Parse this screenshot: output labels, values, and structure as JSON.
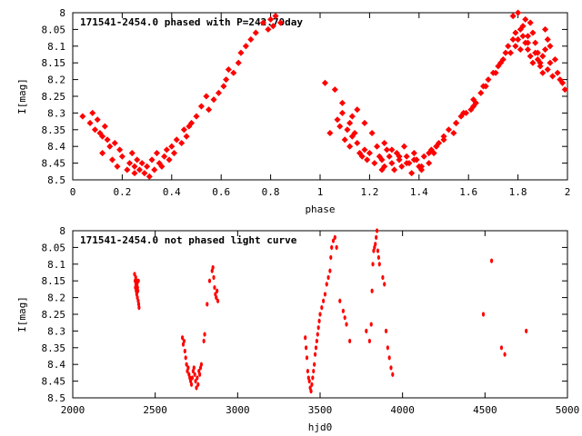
{
  "chart_data": [
    {
      "type": "scatter",
      "title": "171541-2454.0 phased with P=242.70day",
      "xlabel": "phase",
      "ylabel": "I[mag]",
      "xlim": [
        0,
        2
      ],
      "ylim": [
        8.5,
        8
      ],
      "y_inverted": true,
      "x_ticks": [
        "0",
        "0.2",
        "0.4",
        "0.6",
        "0.8",
        "1",
        "1.2",
        "1.4",
        "1.6",
        "1.8",
        "2"
      ],
      "y_ticks": [
        "8",
        "8.05",
        "8.1",
        "8.15",
        "8.2",
        "8.25",
        "8.3",
        "8.35",
        "8.4",
        "8.45",
        "8.5"
      ],
      "marker_color": "#ff0000",
      "series": [
        {
          "x": [
            0.04,
            0.07,
            0.08,
            0.09,
            0.1,
            0.11,
            0.12,
            0.12,
            0.13,
            0.14,
            0.15,
            0.16,
            0.17,
            0.18,
            0.19,
            0.2,
            0.22,
            0.23,
            0.24,
            0.25,
            0.25,
            0.26,
            0.27,
            0.28,
            0.29,
            0.3,
            0.31,
            0.32,
            0.33,
            0.34,
            0.35,
            0.36,
            0.37,
            0.38,
            0.39,
            0.4,
            0.41,
            0.42,
            0.44,
            0.45,
            0.46,
            0.47,
            0.48,
            0.5,
            0.52,
            0.54,
            0.55,
            0.57,
            0.59,
            0.61,
            0.62,
            0.63,
            0.65,
            0.67,
            0.68,
            0.7,
            0.72,
            0.74,
            0.77,
            0.79,
            0.8,
            0.81,
            0.82,
            0.84,
            1.04,
            1.07,
            1.08,
            1.09,
            1.1,
            1.11,
            1.12,
            1.12,
            1.13,
            1.14,
            1.15,
            1.16,
            1.17,
            1.18,
            1.19,
            1.2,
            1.22,
            1.23,
            1.24,
            1.25,
            1.25,
            1.26,
            1.27,
            1.28,
            1.29,
            1.3,
            1.31,
            1.32,
            1.33,
            1.34,
            1.35,
            1.36,
            1.37,
            1.38,
            1.39,
            1.4,
            1.41,
            1.42,
            1.44,
            1.45,
            1.46,
            1.47,
            1.48,
            1.5,
            1.52,
            1.54,
            1.55,
            1.57,
            1.59,
            1.61,
            1.62,
            1.63,
            1.65,
            1.67,
            1.68,
            1.7,
            1.72,
            1.74,
            1.77,
            1.79,
            1.8,
            1.81,
            1.82,
            1.84,
            1.02,
            1.06,
            1.09,
            1.13,
            1.15,
            1.18,
            1.21,
            1.26,
            1.29,
            1.32,
            1.35,
            1.38,
            1.41,
            1.44,
            1.47,
            1.5,
            1.55,
            1.58,
            1.62,
            1.66,
            1.71,
            1.73,
            1.75,
            1.76,
            1.78,
            1.79,
            1.81,
            1.83,
            1.84,
            1.85,
            1.86,
            1.87,
            1.88,
            1.89,
            1.9,
            1.91,
            1.92,
            1.93,
            1.94,
            1.95,
            1.96,
            1.97,
            1.98,
            1.99,
            1.85,
            1.86,
            1.87,
            1.88,
            1.89,
            1.9,
            1.91,
            1.92,
            1.93,
            1.83,
            1.84,
            1.82,
            1.8,
            1.78
          ],
          "y": [
            8.31,
            8.33,
            8.3,
            8.35,
            8.32,
            8.36,
            8.37,
            8.42,
            8.34,
            8.38,
            8.4,
            8.44,
            8.39,
            8.46,
            8.41,
            8.43,
            8.47,
            8.45,
            8.42,
            8.46,
            8.48,
            8.44,
            8.47,
            8.45,
            8.48,
            8.46,
            8.49,
            8.44,
            8.47,
            8.42,
            8.45,
            8.46,
            8.43,
            8.41,
            8.44,
            8.4,
            8.42,
            8.38,
            8.39,
            8.35,
            8.37,
            8.34,
            8.33,
            8.31,
            8.28,
            8.25,
            8.29,
            8.26,
            8.24,
            8.22,
            8.2,
            8.17,
            8.18,
            8.15,
            8.12,
            8.1,
            8.08,
            8.06,
            8.03,
            8.05,
            8.02,
            8.04,
            8.01,
            8.03,
            8.36,
            8.32,
            8.34,
            8.3,
            8.38,
            8.35,
            8.33,
            8.4,
            8.37,
            8.36,
            8.39,
            8.42,
            8.43,
            8.41,
            8.44,
            8.42,
            8.45,
            8.4,
            8.43,
            8.47,
            8.44,
            8.46,
            8.41,
            8.43,
            8.45,
            8.47,
            8.42,
            8.44,
            8.46,
            8.4,
            8.43,
            8.45,
            8.48,
            8.42,
            8.44,
            8.46,
            8.47,
            8.43,
            8.45,
            8.41,
            8.42,
            8.4,
            8.39,
            8.37,
            8.35,
            8.36,
            8.33,
            8.31,
            8.3,
            8.29,
            8.28,
            8.27,
            8.24,
            8.22,
            8.2,
            8.18,
            8.16,
            8.14,
            8.12,
            8.1,
            8.08,
            8.11,
            8.07,
            8.09,
            8.21,
            8.23,
            8.27,
            8.31,
            8.29,
            8.33,
            8.36,
            8.39,
            8.41,
            8.43,
            8.45,
            8.44,
            8.46,
            8.42,
            8.4,
            8.38,
            8.33,
            8.3,
            8.26,
            8.22,
            8.18,
            8.15,
            8.12,
            8.1,
            8.08,
            8.06,
            8.05,
            8.09,
            8.11,
            8.13,
            8.15,
            8.12,
            8.14,
            8.16,
            8.13,
            8.11,
            8.17,
            8.15,
            8.19,
            8.14,
            8.18,
            8.2,
            8.21,
            8.23,
            8.03,
            8.06,
            8.09,
            8.12,
            8.15,
            8.18,
            8.05,
            8.08,
            8.1,
            8.02,
            8.07,
            8.04,
            8.0,
            8.01
          ]
        }
      ]
    },
    {
      "type": "scatter",
      "title": "171541-2454.0 not phased light curve",
      "xlabel": "hjd0",
      "ylabel": "I[mag]",
      "xlim": [
        2000,
        5000
      ],
      "ylim": [
        8.5,
        8
      ],
      "y_inverted": true,
      "x_ticks": [
        "2000",
        "2500",
        "3000",
        "3500",
        "4000",
        "4500",
        "5000"
      ],
      "y_ticks": [
        "8",
        "8.05",
        "8.1",
        "8.15",
        "8.2",
        "8.25",
        "8.3",
        "8.35",
        "8.4",
        "8.45",
        "8.5"
      ],
      "marker_color": "#ff0000",
      "series": [
        {
          "x": [
            2375,
            2378,
            2380,
            2382,
            2383,
            2385,
            2387,
            2388,
            2390,
            2392,
            2393,
            2395,
            2397,
            2398,
            2400,
            2402,
            2665,
            2670,
            2675,
            2680,
            2685,
            2690,
            2695,
            2700,
            2705,
            2710,
            2715,
            2720,
            2725,
            2730,
            2735,
            2740,
            2745,
            2750,
            2755,
            2760,
            2765,
            2770,
            2775,
            2780,
            2795,
            2800,
            2815,
            2830,
            2845,
            2850,
            2855,
            2860,
            2865,
            2870,
            2875,
            2880,
            3410,
            3415,
            3420,
            3425,
            3430,
            3435,
            3440,
            3445,
            3450,
            3455,
            3460,
            3465,
            3470,
            3475,
            3480,
            3485,
            3490,
            3495,
            3500,
            3510,
            3520,
            3530,
            3540,
            3550,
            3560,
            3565,
            3570,
            3580,
            3590,
            3600,
            3620,
            3640,
            3650,
            3660,
            3680,
            3780,
            3800,
            3810,
            3815,
            3820,
            3825,
            3830,
            3835,
            3840,
            3845,
            3850,
            3855,
            3860,
            3880,
            3890,
            3900,
            3910,
            3920,
            3930,
            3940,
            4490,
            4540,
            4600,
            4620,
            4750
          ],
          "y": [
            8.13,
            8.15,
            8.17,
            8.14,
            8.16,
            8.18,
            8.15,
            8.19,
            8.16,
            8.2,
            8.17,
            8.18,
            8.21,
            8.15,
            8.22,
            8.23,
            8.32,
            8.34,
            8.33,
            8.36,
            8.38,
            8.4,
            8.42,
            8.41,
            8.43,
            8.44,
            8.45,
            8.46,
            8.44,
            8.42,
            8.41,
            8.43,
            8.45,
            8.47,
            8.44,
            8.46,
            8.42,
            8.43,
            8.41,
            8.4,
            8.33,
            8.31,
            8.22,
            8.15,
            8.12,
            8.11,
            8.14,
            8.17,
            8.19,
            8.2,
            8.18,
            8.21,
            8.32,
            8.35,
            8.38,
            8.42,
            8.44,
            8.45,
            8.47,
            8.48,
            8.46,
            8.44,
            8.42,
            8.4,
            8.37,
            8.35,
            8.33,
            8.31,
            8.29,
            8.27,
            8.25,
            8.23,
            8.21,
            8.19,
            8.16,
            8.14,
            8.12,
            8.08,
            8.05,
            8.03,
            8.02,
            8.05,
            8.21,
            8.24,
            8.26,
            8.28,
            8.33,
            8.3,
            8.33,
            8.28,
            8.18,
            8.1,
            8.06,
            8.05,
            8.04,
            8.02,
            8.0,
            8.06,
            8.08,
            8.1,
            8.14,
            8.16,
            8.3,
            8.35,
            8.38,
            8.41,
            8.43,
            8.25,
            8.09,
            8.35,
            8.37,
            8.3
          ]
        }
      ]
    }
  ]
}
